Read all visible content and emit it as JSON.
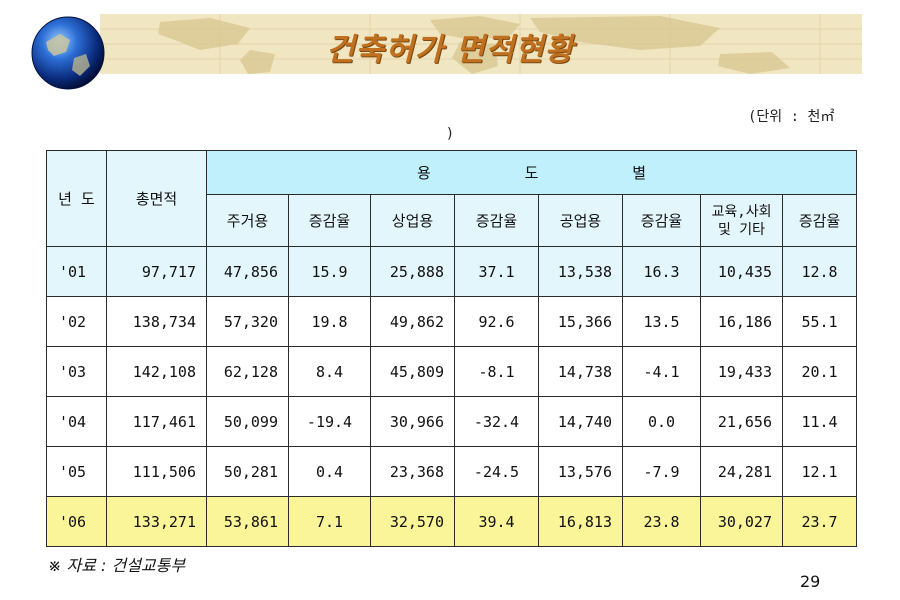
{
  "title": "건축허가 면적현황",
  "unit_label": "(단위 : 천㎡",
  "unit_close": ")",
  "table": {
    "header": {
      "year": "년 도",
      "total": "총면적",
      "group": [
        "용",
        "도",
        "별"
      ],
      "columns": [
        "주거용",
        "증감율",
        "상업용",
        "증감율",
        "공업용",
        "증감율",
        "교육,사회 및 기타",
        "증감율"
      ],
      "edu_line1": "교육,사회",
      "edu_line2": "및 기타"
    },
    "rows": [
      {
        "year": "'01",
        "total": "97,717",
        "res": "47,856",
        "res_rate": "15.9",
        "com": "25,888",
        "com_rate": "37.1",
        "ind": "13,538",
        "ind_rate": "16.3",
        "edu": "10,435",
        "edu_rate": "12.8"
      },
      {
        "year": "'02",
        "total": "138,734",
        "res": "57,320",
        "res_rate": "19.8",
        "com": "49,862",
        "com_rate": "92.6",
        "ind": "15,366",
        "ind_rate": "13.5",
        "edu": "16,186",
        "edu_rate": "55.1"
      },
      {
        "year": "'03",
        "total": "142,108",
        "res": "62,128",
        "res_rate": "8.4",
        "com": "45,809",
        "com_rate": "-8.1",
        "ind": "14,738",
        "ind_rate": "-4.1",
        "edu": "19,433",
        "edu_rate": "20.1"
      },
      {
        "year": "'04",
        "total": "117,461",
        "res": "50,099",
        "res_rate": "-19.4",
        "com": "30,966",
        "com_rate": "-32.4",
        "ind": "14,740",
        "ind_rate": "0.0",
        "edu": "21,656",
        "edu_rate": "11.4"
      },
      {
        "year": "'05",
        "total": "111,506",
        "res": "50,281",
        "res_rate": "0.4",
        "com": "23,368",
        "com_rate": "-24.5",
        "ind": "13,576",
        "ind_rate": "-7.9",
        "edu": "24,281",
        "edu_rate": "12.1"
      },
      {
        "year": "'06",
        "total": "133,271",
        "res": "53,861",
        "res_rate": "7.1",
        "com": "32,570",
        "com_rate": "39.4",
        "ind": "16,813",
        "ind_rate": "23.8",
        "edu": "30,027",
        "edu_rate": "23.7"
      }
    ]
  },
  "source": "※ 자료 : 건설교통부",
  "page_number": "29",
  "colors": {
    "title": "#c0701f",
    "header_bg": "#e3f6fb",
    "group_bg": "#bff0fb",
    "highlight_row": "#fbf59a",
    "map_bg": "#f1e6c2"
  },
  "icons": [
    "globe-icon",
    "world-map-background"
  ]
}
